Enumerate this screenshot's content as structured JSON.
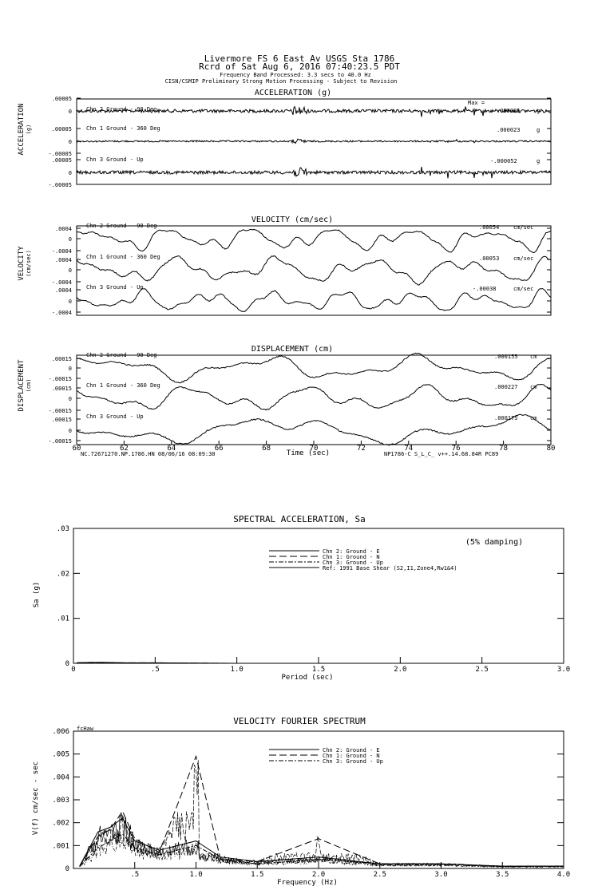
{
  "header": {
    "line1": "Livermore FS 6 East Av    USGS Sta 1786",
    "line2": "Rcrd of Sat Aug  6, 2016 07:40:23.5 PDT",
    "line3": "Frequency Band Processed: 3.3 secs to 40.0 Hz",
    "line4": "CISN/CSMIP Preliminary Strong Motion Processing - Subject to Revision"
  },
  "waveforms": {
    "x_ticks": [
      "60",
      "62",
      "64",
      "66",
      "68",
      "70",
      "72",
      "74",
      "76",
      "78",
      "80"
    ],
    "x_label": "Time (sec)",
    "footer_left": "NC.72671270.NP.1786.HN 08/06/16 08:09:30",
    "footer_right": "NP1786-C  S_L_C_  v++.14.68.84R PC89",
    "acceleration": {
      "title": "ACCELERATION (g)",
      "ylabel": "ACCELERATION",
      "unit_label": "(g)",
      "max_label": "Max =",
      "channels": [
        {
          "name": "Chn 2  Ground - 90 Deg",
          "peak": ".000086",
          "unit": "g",
          "ticks": [
            ".00005",
            "0"
          ]
        },
        {
          "name": "Chn 1  Ground - 360 Deg",
          "peak": ".000023",
          "unit": "g",
          "ticks": [
            ".00005",
            "0",
            "-.00005"
          ]
        },
        {
          "name": "Chn 3  Ground - Up",
          "peak": "-.000052",
          "unit": "g",
          "ticks": [
            ".00005",
            "0",
            "-.00005"
          ]
        }
      ]
    },
    "velocity": {
      "title": "VELOCITY (cm/sec)",
      "ylabel": "VELOCITY",
      "unit_label": "(cm/sec)",
      "channels": [
        {
          "name": "Chn 2  Ground - 90 Deg",
          "peak": ".00054",
          "unit": "cm/sec",
          "ticks": [
            ".0004",
            "0",
            "-.0004"
          ]
        },
        {
          "name": "Chn 1  Ground - 360 Deg",
          "peak": ".00053",
          "unit": "cm/sec",
          "ticks": [
            ".0004",
            "0",
            "-.0004"
          ]
        },
        {
          "name": "Chn 3  Ground - Up",
          "peak": "-.00038",
          "unit": "cm/sec",
          "ticks": [
            ".0004",
            "0",
            "-.0004"
          ]
        }
      ]
    },
    "displacement": {
      "title": "DISPLACEMENT (cm)",
      "ylabel": "DISPLACEMENT",
      "unit_label": "(cm)",
      "channels": [
        {
          "name": "Chn 2  Ground - 90 Deg",
          "peak": ".000155",
          "unit": "cm",
          "ticks": [
            ".00015",
            "0",
            "-.00015"
          ]
        },
        {
          "name": "Chn 1  Ground - 360 Deg",
          "peak": ".000227",
          "unit": "cm",
          "ticks": [
            ".00015",
            "0",
            "-.00015"
          ]
        },
        {
          "name": "Chn 3  Ground - Up",
          "peak": ".000175",
          "unit": "cm",
          "ticks": [
            ".00015",
            "0",
            "-.00015"
          ]
        }
      ]
    }
  },
  "chart_data": [
    {
      "type": "line",
      "title": "SPECTRAL ACCELERATION, Sa",
      "xlabel": "Period (sec)",
      "ylabel": "Sa (g)",
      "xlim": [
        0,
        3.0
      ],
      "ylim": [
        0,
        0.03
      ],
      "x_ticks": [
        "0",
        ".5",
        "1.0",
        "1.5",
        "2.0",
        "2.5",
        "3.0"
      ],
      "y_ticks": [
        "0",
        ".01",
        ".02",
        ".03"
      ],
      "annotation": "(5% damping)",
      "legend": [
        "Chn 2: Ground - E",
        "Chn 1: Ground - N",
        "Chn 3: Ground - Up",
        "Ref: 1991 Base Shear (S2,I1,Zone4,Rw1&4)"
      ],
      "series": [
        {
          "name": "Chn 2: Ground - E",
          "x": [
            0.02,
            0.1,
            0.2,
            0.3,
            0.5,
            1.0,
            2.0,
            3.0
          ],
          "values": [
            0.0001,
            0.0002,
            0.0002,
            0.0001,
            0.0001,
            0,
            0,
            0
          ]
        },
        {
          "name": "Chn 1: Ground - N",
          "x": [
            0.02,
            0.1,
            0.2,
            0.3,
            0.5,
            1.0,
            2.0,
            3.0
          ],
          "values": [
            0.0001,
            0.0002,
            0.0002,
            0.0001,
            0.0001,
            0,
            0,
            0
          ]
        },
        {
          "name": "Chn 3: Ground - Up",
          "x": [
            0.02,
            0.1,
            0.2,
            0.3,
            0.5,
            1.0,
            2.0,
            3.0
          ],
          "values": [
            0.0001,
            0.0001,
            0.0001,
            0.0001,
            0,
            0,
            0,
            0
          ]
        }
      ]
    },
    {
      "type": "line",
      "title": "VELOCITY FOURIER SPECTRUM",
      "xlabel": "Frequency (Hz)",
      "ylabel": "V(f)  cm/sec - sec",
      "corner_label": "fcHaw",
      "xlim": [
        0,
        4.0
      ],
      "ylim": [
        0,
        0.006
      ],
      "x_ticks": [
        ".5",
        "1.0",
        "1.5",
        "2.0",
        "2.5",
        "3.0",
        "3.5",
        "4.0"
      ],
      "y_ticks": [
        "0",
        ".001",
        ".002",
        ".003",
        ".004",
        ".005",
        ".006"
      ],
      "legend": [
        "Chn 2: Ground - E",
        "Chn 1: Ground - N",
        "Chn 3: Ground - Up"
      ],
      "series": [
        {
          "name": "Chn 2: Ground - E",
          "x": [
            0.05,
            0.2,
            0.3,
            0.4,
            0.5,
            0.7,
            1.0,
            1.2,
            1.5,
            2.0,
            2.5,
            3.0,
            3.5,
            4.0
          ],
          "values": [
            0.0001,
            0.0016,
            0.0018,
            0.0022,
            0.0012,
            0.0008,
            0.0012,
            0.0005,
            0.0003,
            0.0005,
            0.0002,
            0.0002,
            0.0001,
            0.0001
          ]
        },
        {
          "name": "Chn 1: Ground - N",
          "x": [
            0.05,
            0.2,
            0.3,
            0.4,
            0.5,
            0.7,
            1.0,
            1.2,
            1.5,
            2.0,
            2.5,
            3.0,
            3.5,
            4.0
          ],
          "values": [
            0.0001,
            0.0014,
            0.0017,
            0.0025,
            0.0013,
            0.0007,
            0.0049,
            0.0004,
            0.0003,
            0.0013,
            0.0002,
            0.0002,
            0.0001,
            0.0001
          ]
        },
        {
          "name": "Chn 3: Ground - Up",
          "x": [
            0.05,
            0.2,
            0.3,
            0.4,
            0.5,
            0.7,
            1.0,
            1.2,
            1.5,
            2.0,
            2.5,
            3.0,
            3.5,
            4.0
          ],
          "values": [
            0.0001,
            0.0009,
            0.0012,
            0.0015,
            0.0009,
            0.0006,
            0.001,
            0.0004,
            0.0002,
            0.0004,
            0.0002,
            0.0002,
            0.0001,
            0.0001
          ]
        }
      ]
    }
  ]
}
